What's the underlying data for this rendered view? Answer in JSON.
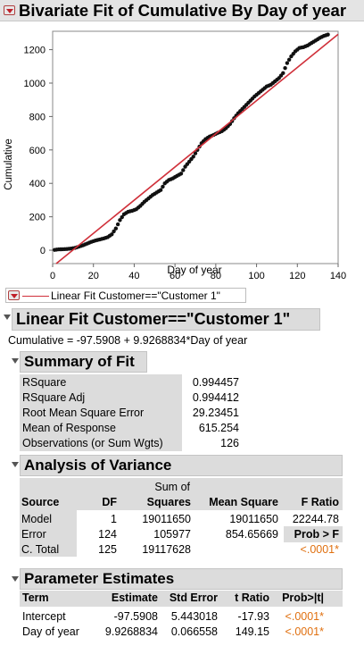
{
  "title": "Bivariate Fit of Cumulative By Day of year",
  "chart_data": {
    "type": "scatter",
    "xlabel": "Day of year",
    "ylabel": "Cumulative",
    "xlim": [
      0,
      140
    ],
    "ylim": [
      -80,
      1310
    ],
    "xticks": [
      "0",
      "20",
      "40",
      "60",
      "80",
      "100",
      "120",
      "140"
    ],
    "yticks": [
      "0",
      "200",
      "400",
      "600",
      "800",
      "1000",
      "1200"
    ],
    "series": [
      {
        "values_xy": [
          [
            1,
            2
          ],
          [
            3,
            5
          ],
          [
            5,
            6
          ],
          [
            7,
            7
          ],
          [
            9,
            10
          ],
          [
            11,
            14
          ],
          [
            13,
            22
          ],
          [
            15,
            30
          ],
          [
            17,
            40
          ],
          [
            19,
            50
          ],
          [
            21,
            58
          ],
          [
            23,
            64
          ],
          [
            25,
            70
          ],
          [
            27,
            78
          ],
          [
            29,
            95
          ],
          [
            31,
            130
          ],
          [
            33,
            180
          ],
          [
            35,
            215
          ],
          [
            37,
            230
          ],
          [
            39,
            236
          ],
          [
            41,
            245
          ],
          [
            43,
            265
          ],
          [
            45,
            290
          ],
          [
            47,
            310
          ],
          [
            49,
            330
          ],
          [
            51,
            345
          ],
          [
            53,
            360
          ],
          [
            55,
            400
          ],
          [
            57,
            420
          ],
          [
            59,
            430
          ],
          [
            61,
            445
          ],
          [
            63,
            458
          ],
          [
            65,
            500
          ],
          [
            67,
            530
          ],
          [
            69,
            560
          ],
          [
            71,
            600
          ],
          [
            73,
            640
          ],
          [
            75,
            665
          ],
          [
            77,
            680
          ],
          [
            79,
            690
          ],
          [
            81,
            702
          ],
          [
            83,
            712
          ],
          [
            85,
            730
          ],
          [
            87,
            755
          ],
          [
            89,
            790
          ],
          [
            91,
            820
          ],
          [
            93,
            845
          ],
          [
            95,
            870
          ],
          [
            97,
            895
          ],
          [
            99,
            920
          ],
          [
            101,
            940
          ],
          [
            103,
            960
          ],
          [
            105,
            980
          ],
          [
            107,
            990
          ],
          [
            109,
            1010
          ],
          [
            111,
            1030
          ],
          [
            113,
            1060
          ],
          [
            115,
            1120
          ],
          [
            117,
            1160
          ],
          [
            119,
            1190
          ],
          [
            121,
            1210
          ],
          [
            123,
            1215
          ],
          [
            125,
            1225
          ],
          [
            127,
            1240
          ],
          [
            129,
            1255
          ],
          [
            131,
            1270
          ],
          [
            133,
            1282
          ],
          [
            135,
            1290
          ]
        ]
      }
    ],
    "fit_line": {
      "intercept": -97.5908,
      "slope": 9.9268834
    },
    "colors": {
      "points": "#111111",
      "fit": "#d0303a",
      "frame": "#888888"
    }
  },
  "legend": {
    "label": "Linear Fit Customer==\"Customer 1\""
  },
  "fit_section": {
    "title": "Linear Fit Customer==\"Customer 1\"",
    "equation": "Cumulative = -97.5908 + 9.9268834*Day of year"
  },
  "summary": {
    "title": "Summary of Fit",
    "rows": [
      {
        "label": "RSquare",
        "value": "0.994457"
      },
      {
        "label": "RSquare Adj",
        "value": "0.994412"
      },
      {
        "label": "Root Mean Square Error",
        "value": "29.23451"
      },
      {
        "label": "Mean of Response",
        "value": "615.254"
      },
      {
        "label": "Observations (or Sum Wgts)",
        "value": "126"
      }
    ]
  },
  "anova": {
    "title": "Analysis of Variance",
    "headers": {
      "source": "Source",
      "df": "DF",
      "ss1": "Sum of",
      "ss2": "Squares",
      "ms": "Mean Square",
      "f": "F Ratio"
    },
    "rows": [
      {
        "source": "Model",
        "df": "1",
        "ss": "19011650",
        "ms": "19011650",
        "f": "22244.78"
      },
      {
        "source": "Error",
        "df": "124",
        "ss": "105977",
        "ms": "854.65669",
        "f": "Prob > F"
      },
      {
        "source": "C. Total",
        "df": "125",
        "ss": "19117628",
        "ms": "",
        "f": "<.0001*"
      }
    ]
  },
  "params": {
    "title": "Parameter Estimates",
    "headers": {
      "term": "Term",
      "est": "Estimate",
      "se": "Std Error",
      "t": "t Ratio",
      "p": "Prob>|t|"
    },
    "rows": [
      {
        "term": "Intercept",
        "est": "-97.5908",
        "se": "5.443018",
        "t": "-17.93",
        "p": "<.0001*"
      },
      {
        "term": "Day of year",
        "est": "9.9268834",
        "se": "0.066558",
        "t": "149.15",
        "p": "<.0001*"
      }
    ]
  }
}
